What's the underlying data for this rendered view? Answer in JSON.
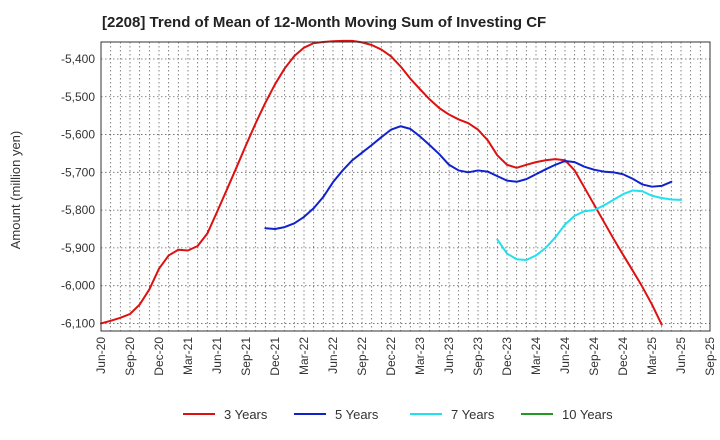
{
  "chart_data": {
    "type": "line",
    "title": "[2208]  Trend of Mean of 12-Month Moving Sum of Investing CF",
    "xlabel": "",
    "ylabel": "Amount (million yen)",
    "ylim": [
      -6120,
      -5355
    ],
    "yticks": [
      -5400,
      -5500,
      -5600,
      -5700,
      -5800,
      -5900,
      -6000,
      -6100
    ],
    "ytick_labels": [
      "-5,400",
      "-5,500",
      "-5,600",
      "-5,700",
      "-5,800",
      "-5,900",
      "-6,000",
      "-6,100"
    ],
    "xlim_months": [
      0,
      63
    ],
    "xticks": [
      {
        "label": "Jun-20",
        "m": 0
      },
      {
        "label": "Sep-20",
        "m": 3
      },
      {
        "label": "Dec-20",
        "m": 6
      },
      {
        "label": "Mar-21",
        "m": 9
      },
      {
        "label": "Jun-21",
        "m": 12
      },
      {
        "label": "Sep-21",
        "m": 15
      },
      {
        "label": "Dec-21",
        "m": 18
      },
      {
        "label": "Mar-22",
        "m": 21
      },
      {
        "label": "Jun-22",
        "m": 24
      },
      {
        "label": "Sep-22",
        "m": 27
      },
      {
        "label": "Dec-22",
        "m": 30
      },
      {
        "label": "Mar-23",
        "m": 33
      },
      {
        "label": "Jun-23",
        "m": 36
      },
      {
        "label": "Sep-23",
        "m": 39
      },
      {
        "label": "Dec-23",
        "m": 42
      },
      {
        "label": "Mar-24",
        "m": 45
      },
      {
        "label": "Jun-24",
        "m": 48
      },
      {
        "label": "Sep-24",
        "m": 51
      },
      {
        "label": "Dec-24",
        "m": 54
      },
      {
        "label": "Mar-25",
        "m": 57
      },
      {
        "label": "Jun-25",
        "m": 60
      },
      {
        "label": "Sep-25",
        "m": 63
      }
    ],
    "grid": true,
    "legend_position": "bottom",
    "series": [
      {
        "name": "3 Years",
        "color": "#dd1111",
        "start_month": 0,
        "values": [
          -6100,
          -6093,
          -6085,
          -6075,
          -6050,
          -6010,
          -5955,
          -5920,
          -5905,
          -5907,
          -5895,
          -5862,
          -5805,
          -5747,
          -5688,
          -5628,
          -5570,
          -5516,
          -5467,
          -5425,
          -5392,
          -5370,
          -5358,
          -5355,
          -5353,
          -5352,
          -5352,
          -5356,
          -5363,
          -5375,
          -5393,
          -5420,
          -5452,
          -5480,
          -5507,
          -5530,
          -5547,
          -5560,
          -5570,
          -5587,
          -5615,
          -5655,
          -5680,
          -5688,
          -5680,
          -5673,
          -5668,
          -5665,
          -5668,
          -5695,
          -5740,
          -5785,
          -5830,
          -5875,
          -5918,
          -5960,
          -6003,
          -6050,
          -6103
        ]
      },
      {
        "name": "5 Years",
        "color": "#1122cc",
        "start_month": 17,
        "values": [
          -5848,
          -5850,
          -5845,
          -5835,
          -5818,
          -5795,
          -5765,
          -5726,
          -5695,
          -5668,
          -5648,
          -5628,
          -5607,
          -5587,
          -5578,
          -5585,
          -5605,
          -5628,
          -5652,
          -5680,
          -5695,
          -5700,
          -5695,
          -5698,
          -5710,
          -5722,
          -5725,
          -5718,
          -5705,
          -5692,
          -5680,
          -5670,
          -5673,
          -5685,
          -5693,
          -5698,
          -5700,
          -5705,
          -5717,
          -5732,
          -5738,
          -5736,
          -5725
        ]
      },
      {
        "name": "7 Years",
        "color": "#22e0ee",
        "start_month": 41,
        "values": [
          -5878,
          -5915,
          -5930,
          -5932,
          -5920,
          -5900,
          -5872,
          -5838,
          -5815,
          -5803,
          -5800,
          -5788,
          -5773,
          -5758,
          -5748,
          -5750,
          -5762,
          -5768,
          -5772,
          -5773
        ]
      },
      {
        "name": "10 Years",
        "color": "#229922",
        "start_month": 0,
        "values": []
      }
    ]
  }
}
